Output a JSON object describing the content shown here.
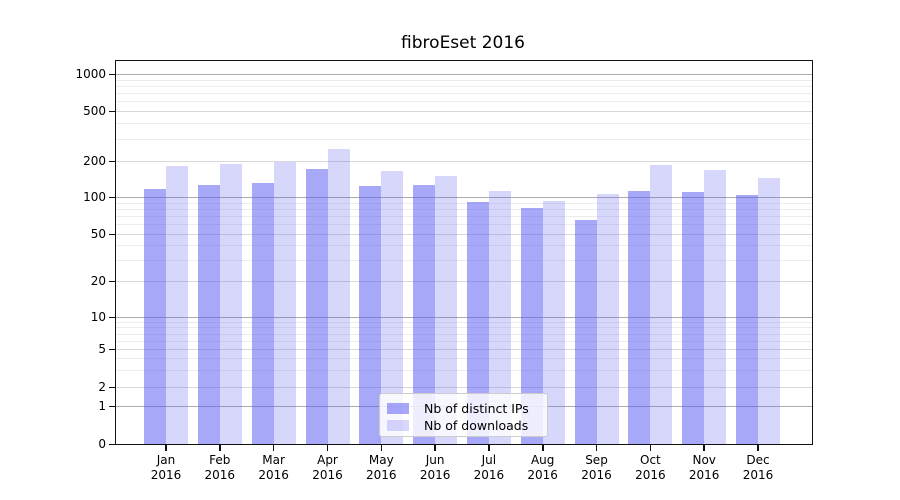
{
  "title": "fibroEset 2016",
  "chart_data": {
    "type": "bar",
    "title": "fibroEset 2016",
    "categories": [
      "Jan 2016",
      "Feb 2016",
      "Mar 2016",
      "Apr 2016",
      "May 2016",
      "Jun 2016",
      "Jul 2016",
      "Aug 2016",
      "Sep 2016",
      "Oct 2016",
      "Nov 2016",
      "Dec 2016"
    ],
    "series": [
      {
        "name": "Nb of distinct IPs",
        "color": "rgba(96,96,242,0.55)",
        "values": [
          117,
          127,
          131,
          173,
          123,
          127,
          92,
          81,
          65,
          112,
          111,
          104
        ]
      },
      {
        "name": "Nb of downloads",
        "color": "rgba(96,96,242,0.25)",
        "values": [
          182,
          188,
          195,
          250,
          165,
          150,
          112,
          93,
          106,
          186,
          167,
          144
        ]
      }
    ],
    "xlabel": "",
    "ylabel": "",
    "yscale": "symlog",
    "yticks": [
      0,
      1,
      2,
      5,
      10,
      20,
      50,
      100,
      200,
      500,
      1000
    ],
    "yticklabels": [
      "0",
      "1",
      "2",
      "5",
      "10",
      "20",
      "50",
      "100",
      "200",
      "500",
      "1000"
    ],
    "ylim": [
      0,
      1280
    ],
    "grid": true,
    "legend_position": "lower center"
  },
  "legend": {
    "items": [
      {
        "label": "Nb of distinct IPs",
        "color": "rgba(96,96,242,0.55)"
      },
      {
        "label": "Nb of downloads",
        "color": "rgba(96,96,242,0.25)"
      }
    ]
  },
  "colors": {
    "bar_dark": "#a7a7f8",
    "bar_light": "#d8d8fa",
    "grid_major": "#ababab",
    "grid_minor": "#ececec",
    "spine": "#111111",
    "background": "#ffffff"
  }
}
